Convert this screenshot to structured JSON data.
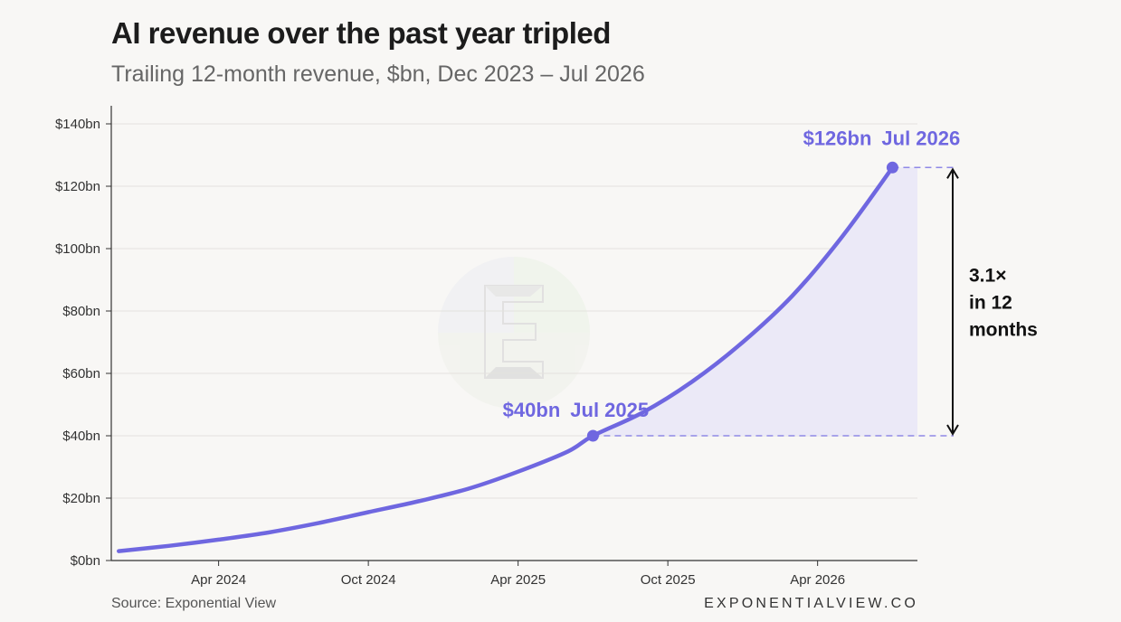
{
  "header": {
    "title": "AI revenue over the past year tripled",
    "subtitle": "Trailing 12-month revenue, $bn, Dec 2023 – Jul 2026"
  },
  "footer": {
    "source": "Source: Exponential View",
    "brand": "EXPONENTIALVIEW.CO"
  },
  "colors": {
    "line": "#6f67e0",
    "fill": "#ebe9f7",
    "axis": "#333333",
    "grid": "#e4e2de"
  },
  "chart_data": {
    "type": "area",
    "title": "AI revenue over the past year tripled",
    "subtitle": "Trailing 12-month revenue, $bn, Dec 2023 – Jul 2026",
    "xlabel": "",
    "ylabel": "",
    "x_range": [
      "Dec 2023",
      "Jul 2026"
    ],
    "ylim": [
      0,
      140
    ],
    "y_ticks": [
      0,
      20,
      40,
      60,
      80,
      100,
      120,
      140
    ],
    "y_tick_labels": [
      "$0bn",
      "$20bn",
      "$40bn",
      "$60bn",
      "$80bn",
      "$100bn",
      "$120bn",
      "$140bn"
    ],
    "x_ticks": [
      {
        "date": "2024-04",
        "label": "Apr 2024"
      },
      {
        "date": "2024-10",
        "label": "Oct 2024"
      },
      {
        "date": "2025-04",
        "label": "Apr 2025"
      },
      {
        "date": "2025-10",
        "label": "Oct 2025"
      },
      {
        "date": "2026-04",
        "label": "Apr 2026"
      }
    ],
    "grid": true,
    "series": [
      {
        "points": [
          {
            "date": "2023-12",
            "value": 3
          },
          {
            "date": "2024-02",
            "value": 4.7
          },
          {
            "date": "2024-04",
            "value": 6.7
          },
          {
            "date": "2024-06",
            "value": 9
          },
          {
            "date": "2024-08",
            "value": 12
          },
          {
            "date": "2024-10",
            "value": 15.5
          },
          {
            "date": "2024-12",
            "value": 19
          },
          {
            "date": "2025-02",
            "value": 23
          },
          {
            "date": "2025-04",
            "value": 28.5
          },
          {
            "date": "2025-06",
            "value": 35
          },
          {
            "date": "2025-07",
            "value": 40
          },
          {
            "date": "2025-09",
            "value": 47.5
          },
          {
            "date": "2025-11",
            "value": 57.5
          },
          {
            "date": "2026-01",
            "value": 70
          },
          {
            "date": "2026-03",
            "value": 85
          },
          {
            "date": "2026-05",
            "value": 104
          },
          {
            "date": "2026-07",
            "value": 126
          }
        ]
      }
    ],
    "highlight_points": [
      {
        "date": "2025-07",
        "value": 40,
        "value_label": "$40bn",
        "date_label": "Jul 2025"
      },
      {
        "date": "2026-07",
        "value": 126,
        "value_label": "$126bn",
        "date_label": "Jul 2026"
      }
    ],
    "shaded_region": {
      "from": "2025-07",
      "to": "2026-07"
    },
    "multiplier_annotation": {
      "lines": [
        "3.1×",
        "in 12",
        "months"
      ]
    }
  }
}
